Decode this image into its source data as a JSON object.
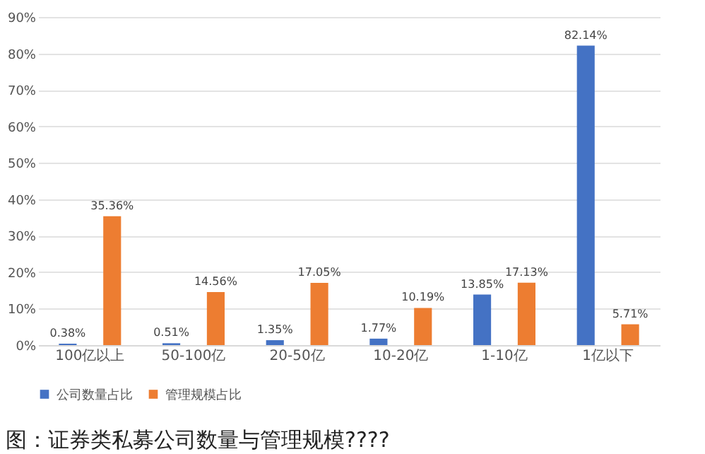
{
  "chart_data": {
    "type": "bar",
    "categories": [
      "100亿以上",
      "50-100亿",
      "20-50亿",
      "10-20亿",
      "1-10亿",
      "1亿以下"
    ],
    "series": [
      {
        "name": "公司数量占比",
        "color": "#4472c4",
        "values": [
          0.38,
          0.51,
          1.35,
          1.77,
          13.85,
          82.14
        ],
        "value_labels": [
          "0.38%",
          "0.51%",
          "1.35%",
          "1.77%",
          "13.85%",
          "82.14%"
        ]
      },
      {
        "name": "管理规模占比",
        "color": "#ed7d31",
        "values": [
          35.36,
          14.56,
          17.05,
          10.19,
          17.13,
          5.71
        ],
        "value_labels": [
          "35.36%",
          "14.56%",
          "17.05%",
          "10.19%",
          "17.13%",
          "5.71%"
        ]
      }
    ],
    "ylim": [
      0,
      90
    ],
    "yticks": [
      {
        "value": 0,
        "label": "0%"
      },
      {
        "value": 10,
        "label": "10%"
      },
      {
        "value": 20,
        "label": "20%"
      },
      {
        "value": 30,
        "label": "30%"
      },
      {
        "value": 40,
        "label": "40%"
      },
      {
        "value": 50,
        "label": "50%"
      },
      {
        "value": 60,
        "label": "60%"
      },
      {
        "value": 70,
        "label": "70%"
      },
      {
        "value": 80,
        "label": "80%"
      },
      {
        "value": 90,
        "label": "90%"
      }
    ],
    "grid": "y",
    "legend": "bottom",
    "annotations": [
      "图：证券类私募公司数量与管理规模????"
    ]
  }
}
